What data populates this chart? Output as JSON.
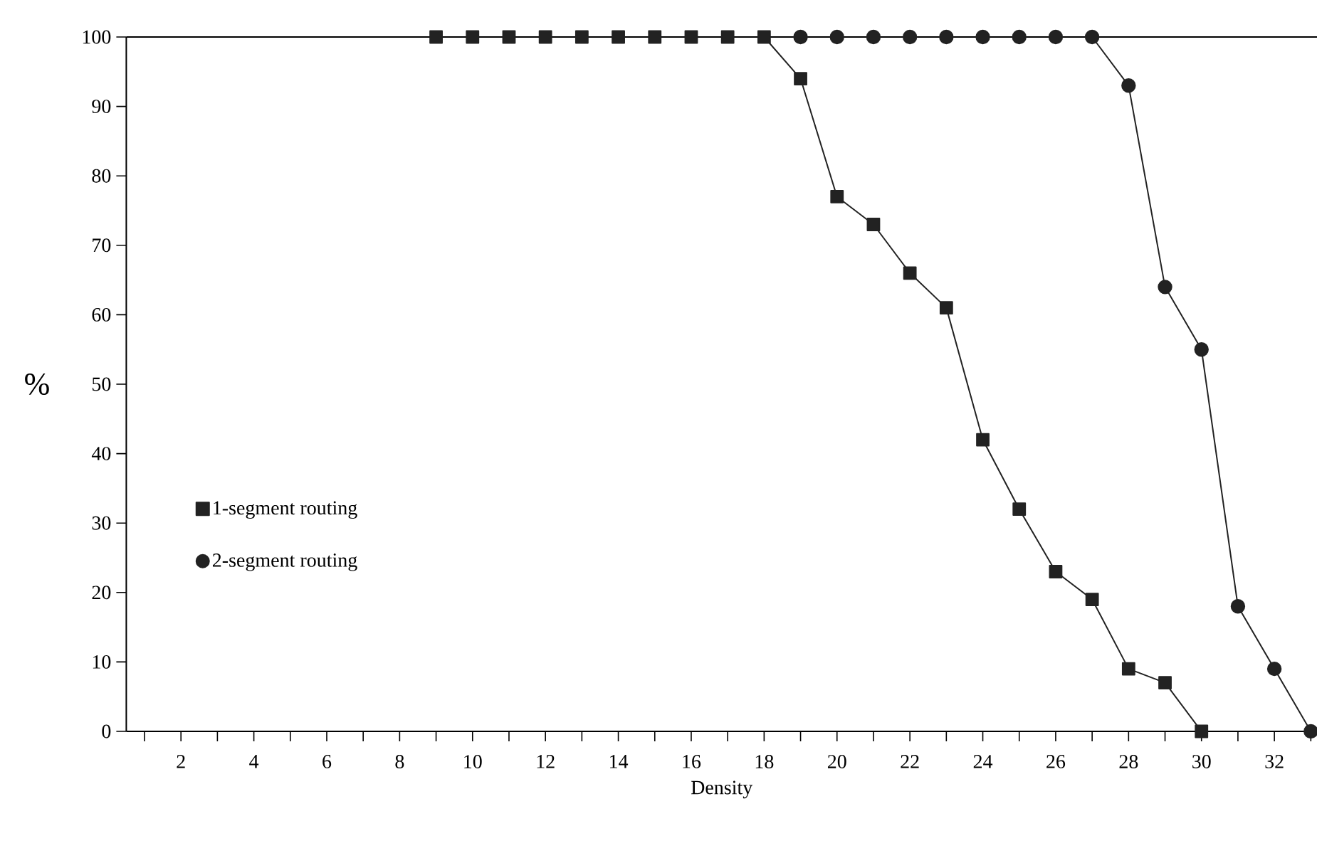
{
  "chart_data": {
    "type": "line",
    "xlabel": "Density",
    "ylabel": "%",
    "xlim": [
      0.5,
      33.17
    ],
    "ylim": [
      0,
      100
    ],
    "xticks": [
      {
        "value": 1,
        "label": null
      },
      2,
      {
        "value": 3,
        "label": null
      },
      4,
      {
        "value": 5,
        "label": null
      },
      6,
      {
        "value": 7,
        "label": null
      },
      8,
      {
        "value": 9,
        "label": null
      },
      10,
      {
        "value": 11,
        "label": null
      },
      12,
      {
        "value": 13,
        "label": null
      },
      14,
      {
        "value": 15,
        "label": null
      },
      16,
      {
        "value": 17,
        "label": null
      },
      18,
      {
        "value": 19,
        "label": null
      },
      20,
      {
        "value": 21,
        "label": null
      },
      22,
      {
        "value": 23,
        "label": null
      },
      24,
      {
        "value": 25,
        "label": null
      },
      26,
      {
        "value": 27,
        "label": null
      },
      28,
      {
        "value": 29,
        "label": null
      },
      30,
      {
        "value": 31,
        "label": null
      },
      32,
      {
        "value": 33,
        "label": null
      }
    ],
    "yticks": [
      0,
      10,
      20,
      30,
      40,
      50,
      60,
      70,
      80,
      90,
      100
    ],
    "legend": "left",
    "grid": false,
    "line_style": "solid",
    "series": [
      {
        "name": "1-segment routing",
        "color": "#222222",
        "marker": "square",
        "x": [
          9,
          10,
          11,
          12,
          13,
          14,
          15,
          16,
          17,
          18,
          19,
          20,
          21,
          22,
          23,
          24,
          25,
          26,
          27,
          28,
          29,
          30
        ],
        "values": [
          100,
          100,
          100,
          100,
          100,
          100,
          100,
          100,
          100,
          100,
          94,
          77,
          73,
          66,
          61,
          42,
          32,
          23,
          19,
          9,
          7,
          0
        ]
      },
      {
        "name": "2-segment routing",
        "color": "#222222",
        "marker": "circle",
        "x": [
          19,
          20,
          21,
          22,
          23,
          24,
          25,
          26,
          27,
          28,
          29,
          30,
          31,
          32,
          33
        ],
        "values": [
          100,
          100,
          100,
          100,
          100,
          100,
          100,
          100,
          100,
          93,
          64,
          55,
          18,
          9,
          0
        ]
      }
    ]
  }
}
